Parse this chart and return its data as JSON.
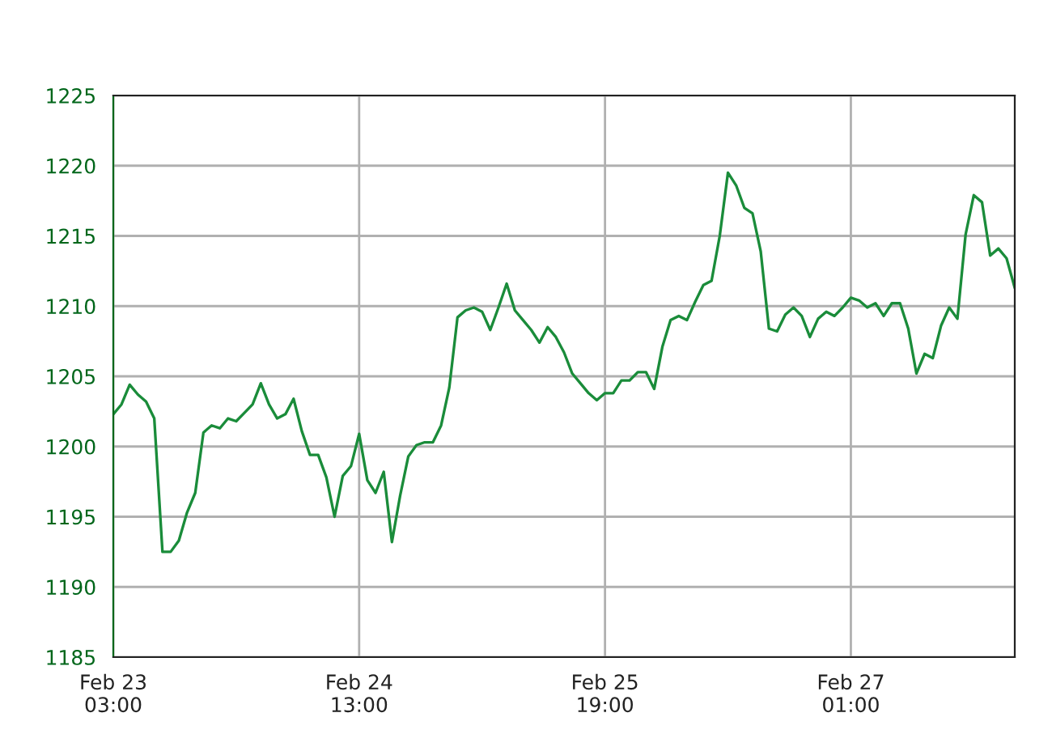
{
  "chart_data": {
    "type": "line",
    "categories": [
      "Feb 23\n03:00",
      null,
      null,
      null,
      null,
      null,
      null,
      null,
      null,
      null,
      null,
      null,
      null,
      null,
      null,
      null,
      null,
      null,
      null,
      null,
      null,
      null,
      null,
      null,
      null,
      null,
      null,
      null,
      null,
      null,
      "Feb 24\n13:00",
      null,
      null,
      null,
      null,
      null,
      null,
      null,
      null,
      null,
      null,
      null,
      null,
      null,
      null,
      null,
      null,
      null,
      null,
      null,
      null,
      null,
      null,
      null,
      null,
      null,
      null,
      null,
      null,
      null,
      "Feb 25\n19:00",
      null,
      null,
      null,
      null,
      null,
      null,
      null,
      null,
      null,
      null,
      null,
      null,
      null,
      null,
      null,
      null,
      null,
      null,
      null,
      null,
      null,
      null,
      null,
      null,
      null,
      null,
      null,
      null,
      null,
      "Feb 27\n01:00",
      null,
      null,
      null,
      null,
      null,
      null,
      null,
      null,
      null,
      null,
      null,
      null,
      null,
      null,
      null,
      null,
      null,
      null,
      null,
      null
    ],
    "series": [
      {
        "color": "#1a8c3a",
        "values": [
          1202.3,
          1203,
          1204.4,
          1203.7,
          1203.2,
          1202,
          1192.5,
          1192.5,
          1193.3,
          1195.3,
          1196.7,
          1201,
          1201.5,
          1201.3,
          1202,
          1201.8,
          1202.4,
          1203,
          1204.5,
          1203,
          1202,
          1202.3,
          1203.4,
          1201.1,
          1199.4,
          1199.4,
          1197.8,
          1195,
          1197.9,
          1198.6,
          1200.9,
          1197.6,
          1196.7,
          1198.2,
          1193.2,
          1196.5,
          1199.3,
          1200.1,
          1200.3,
          1200.3,
          1201.5,
          1204.2,
          1209.2,
          1209.7,
          1209.9,
          1209.6,
          1208.3,
          1209.9,
          1211.6,
          1209.7,
          1209,
          1208.3,
          1207.4,
          1208.5,
          1207.8,
          1206.7,
          1205.2,
          1204.5,
          1203.8,
          1203.3,
          1203.8,
          1203.8,
          1204.7,
          1204.7,
          1205.3,
          1205.3,
          1204.1,
          1207.1,
          1209,
          1209.3,
          1209,
          1210.3,
          1211.5,
          1211.8,
          1215,
          1219.5,
          1218.6,
          1217,
          1216.6,
          1213.9,
          1208.4,
          1208.2,
          1209.4,
          1209.9,
          1209.3,
          1207.8,
          1209.1,
          1209.6,
          1209.3,
          1209.9,
          1210.6,
          1210.4,
          1209.9,
          1210.2,
          1209.3,
          1210.2,
          1210.2,
          1208.4,
          1205.2,
          1206.6,
          1206.3,
          1208.6,
          1209.9,
          1209.1,
          1215.1,
          1217.9,
          1217.4,
          1213.6,
          1214.1,
          1213.4,
          1211.3
        ]
      }
    ],
    "ylim": [
      1185,
      1225
    ],
    "yticks": [
      1185,
      1190,
      1195,
      1200,
      1205,
      1210,
      1215,
      1220,
      1225
    ],
    "grid": true,
    "marker": "none",
    "line_style": "solid",
    "legend": false
  }
}
